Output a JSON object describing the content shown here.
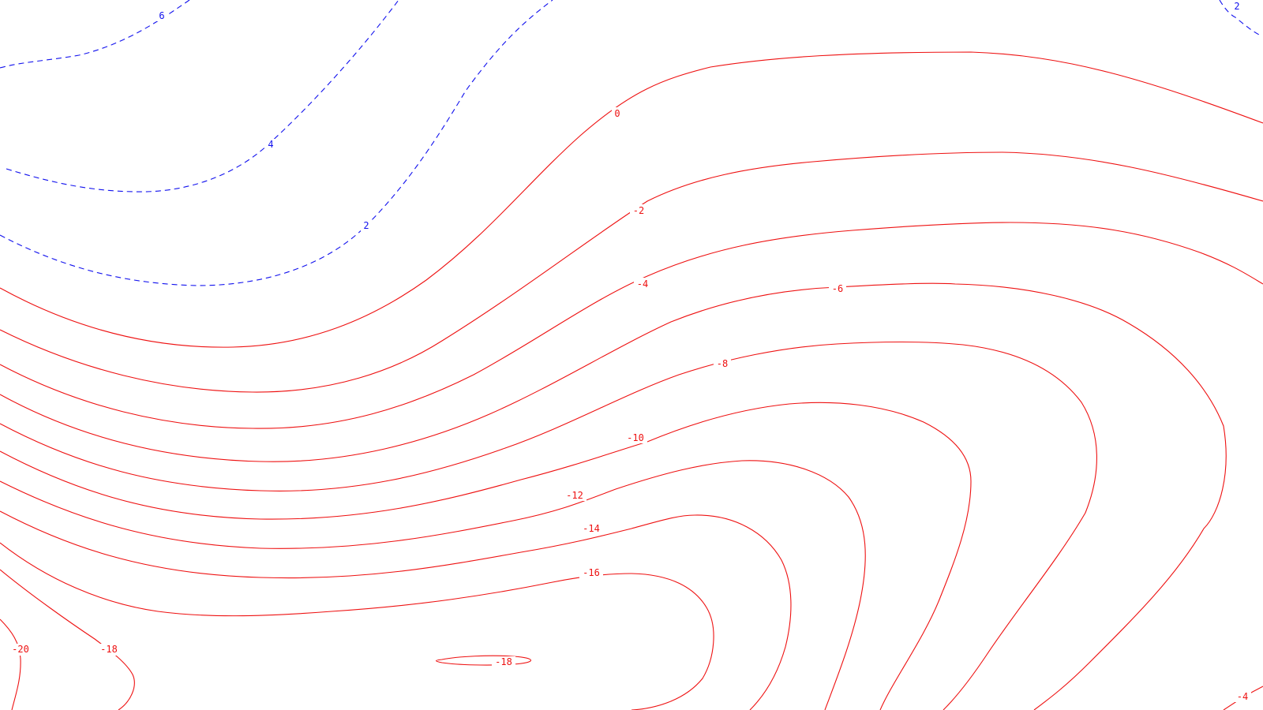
{
  "map": {
    "colors": {
      "negative": "#ee1111",
      "positive": "#1111ee",
      "background": "#ffffff"
    },
    "line_styles": {
      "negative": "solid",
      "positive": "dashed"
    },
    "contour_levels": [
      6,
      4,
      2,
      0,
      -2,
      -4,
      -6,
      -8,
      -10,
      -12,
      -14,
      -16,
      -18,
      -20
    ],
    "labels": [
      {
        "id": "lbl-pos-6",
        "text": "6",
        "sign": "positive"
      },
      {
        "id": "lbl-pos-4",
        "text": "4",
        "sign": "positive"
      },
      {
        "id": "lbl-pos-2",
        "text": "2",
        "sign": "positive"
      },
      {
        "id": "lbl-pos-2-corner",
        "text": "2",
        "sign": "positive"
      },
      {
        "id": "lbl-0",
        "text": "0",
        "sign": "negative"
      },
      {
        "id": "lbl-neg-2",
        "text": "-2",
        "sign": "negative"
      },
      {
        "id": "lbl-neg-4",
        "text": "-4",
        "sign": "negative"
      },
      {
        "id": "lbl-neg-6",
        "text": "-6",
        "sign": "negative"
      },
      {
        "id": "lbl-neg-8",
        "text": "-8",
        "sign": "negative"
      },
      {
        "id": "lbl-neg-10",
        "text": "-10",
        "sign": "negative"
      },
      {
        "id": "lbl-neg-12",
        "text": "-12",
        "sign": "negative"
      },
      {
        "id": "lbl-neg-14",
        "text": "-14",
        "sign": "negative"
      },
      {
        "id": "lbl-neg-16",
        "text": "-16",
        "sign": "negative"
      },
      {
        "id": "lbl-neg-18-left",
        "text": "-18",
        "sign": "negative"
      },
      {
        "id": "lbl-neg-18-island",
        "text": "-18",
        "sign": "negative"
      },
      {
        "id": "lbl-neg-20",
        "text": "-20",
        "sign": "negative"
      },
      {
        "id": "lbl-neg-4-corner",
        "text": "-4",
        "sign": "negative"
      }
    ]
  }
}
